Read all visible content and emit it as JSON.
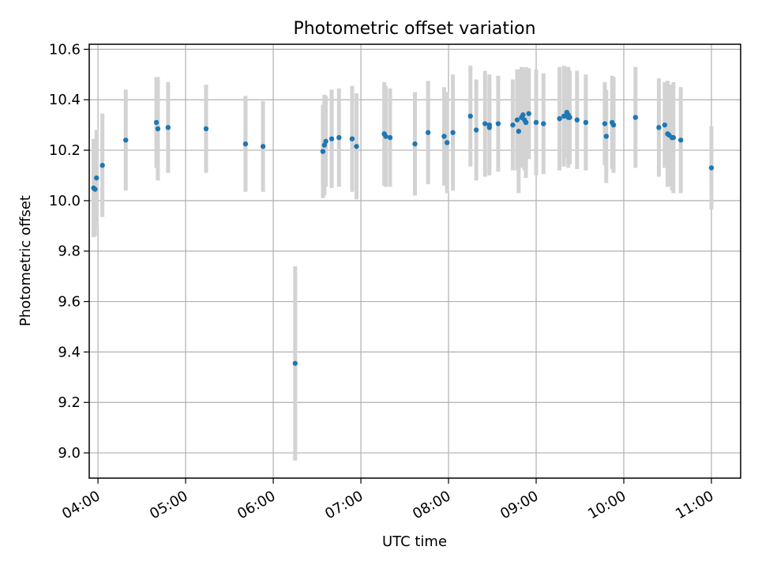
{
  "chart_data": {
    "type": "scatter",
    "title": "Photometric offset variation",
    "xlabel": "UTC time",
    "ylabel": "Photometric offset",
    "x_ticks": [
      "04:00",
      "05:00",
      "06:00",
      "07:00",
      "08:00",
      "09:00",
      "10:00",
      "11:00"
    ],
    "y_ticks": [
      "9.0",
      "9.2",
      "9.4",
      "9.6",
      "9.8",
      "10.0",
      "10.2",
      "10.4",
      "10.6"
    ],
    "xlim": [
      "03:54",
      "11:20"
    ],
    "ylim": [
      8.9,
      10.62
    ],
    "grid": true,
    "marker_color": "#1f77b4",
    "errorbar_color": "#d3d3d3",
    "series": [
      {
        "x": [
          "03:57",
          "03:58",
          "03:59",
          "04:03",
          "04:19",
          "04:40",
          "04:41",
          "04:48",
          "05:14",
          "05:41",
          "05:53",
          "06:15",
          "06:34",
          "06:35",
          "06:36",
          "06:40",
          "06:45",
          "06:54",
          "06:57",
          "07:16",
          "07:17",
          "07:20",
          "07:37",
          "07:46",
          "07:57",
          "07:59",
          "08:03",
          "08:15",
          "08:19",
          "08:25",
          "08:28",
          "08:28",
          "08:34",
          "08:44",
          "08:47",
          "08:48",
          "08:50",
          "08:51",
          "08:52",
          "08:53",
          "08:53",
          "08:55",
          "09:00",
          "09:05",
          "09:16",
          "09:19",
          "09:21",
          "09:22",
          "09:22",
          "09:23",
          "09:28",
          "09:34",
          "09:47",
          "09:48",
          "09:52",
          "09:53",
          "10:08",
          "10:24",
          "10:28",
          "10:30",
          "10:31",
          "10:33",
          "10:34",
          "10:39",
          "11:00"
        ],
        "y": [
          10.05,
          10.045,
          10.09,
          10.14,
          10.24,
          10.31,
          10.285,
          10.29,
          10.285,
          10.225,
          10.215,
          9.355,
          10.195,
          10.22,
          10.235,
          10.245,
          10.25,
          10.245,
          10.215,
          10.265,
          10.255,
          10.25,
          10.225,
          10.27,
          10.255,
          10.23,
          10.27,
          10.335,
          10.28,
          10.305,
          10.3,
          10.29,
          10.305,
          10.3,
          10.32,
          10.275,
          10.33,
          10.34,
          10.32,
          10.31,
          10.31,
          10.345,
          10.31,
          10.305,
          10.325,
          10.335,
          10.35,
          10.33,
          10.34,
          10.33,
          10.32,
          10.31,
          10.305,
          10.255,
          10.31,
          10.3,
          10.33,
          10.29,
          10.3,
          10.265,
          10.26,
          10.25,
          10.25,
          10.24,
          10.13
        ],
        "yerr": [
          0.195,
          0.185,
          0.19,
          0.205,
          0.2,
          0.18,
          0.205,
          0.18,
          0.175,
          0.19,
          0.18,
          0.385,
          0.185,
          0.2,
          0.18,
          0.195,
          0.195,
          0.21,
          0.21,
          0.205,
          0.2,
          0.195,
          0.205,
          0.205,
          0.195,
          0.2,
          0.23,
          0.2,
          0.2,
          0.21,
          0.2,
          0.18,
          0.19,
          0.18,
          0.2,
          0.245,
          0.2,
          0.185,
          0.2,
          0.22,
          0.19,
          0.18,
          0.21,
          0.2,
          0.205,
          0.2,
          0.18,
          0.2,
          0.19,
          0.185,
          0.195,
          0.19,
          0.165,
          0.185,
          0.185,
          0.19,
          0.2,
          0.195,
          0.17,
          0.21,
          0.2,
          0.21,
          0.22,
          0.21,
          0.165
        ]
      }
    ]
  }
}
